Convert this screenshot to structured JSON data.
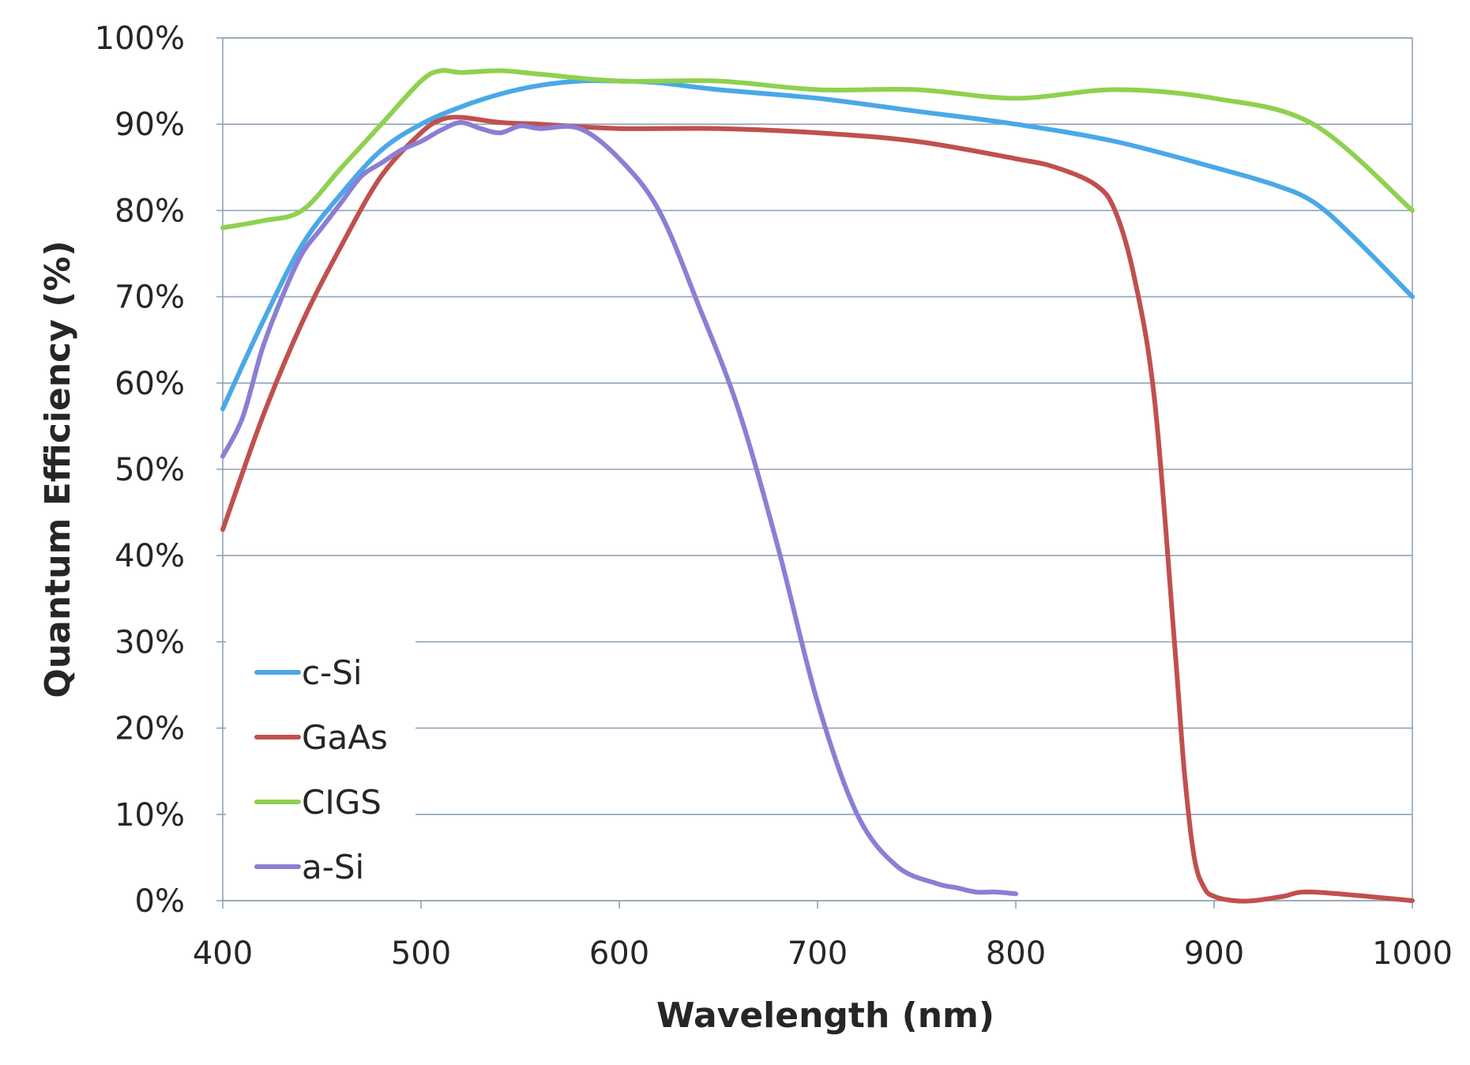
{
  "chart_data": {
    "type": "line",
    "title": "",
    "xlabel": "Wavelength (nm)",
    "ylabel": "Quantum Efficiency (%)",
    "xlim": [
      400,
      1000
    ],
    "ylim": [
      0,
      100
    ],
    "xticks": [
      400,
      500,
      600,
      700,
      800,
      900,
      1000
    ],
    "xtick_labels": [
      "400",
      "500",
      "600",
      "700",
      "800",
      "900",
      "1000"
    ],
    "yticks": [
      0,
      10,
      20,
      30,
      40,
      50,
      60,
      70,
      80,
      90,
      100
    ],
    "ytick_labels": [
      "0%",
      "10%",
      "20%",
      "30%",
      "40%",
      "50%",
      "60%",
      "70%",
      "80%",
      "90%",
      "100%"
    ],
    "grid": "horizontal",
    "legend_position": "lower-left",
    "series": [
      {
        "name": "c-Si",
        "color": "#4aa8e8",
        "x": [
          400,
          420,
          440,
          460,
          480,
          500,
          520,
          540,
          560,
          580,
          600,
          620,
          650,
          700,
          750,
          800,
          850,
          900,
          930,
          950,
          970,
          1000
        ],
        "y": [
          57,
          67,
          76,
          82,
          87,
          90,
          92,
          93.5,
          94.5,
          95,
          95,
          94.8,
          94,
          93,
          91.5,
          90,
          88,
          85,
          83,
          81,
          77,
          70
        ]
      },
      {
        "name": "GaAs",
        "color": "#c0504d",
        "x": [
          400,
          420,
          440,
          460,
          480,
          500,
          510,
          520,
          540,
          560,
          600,
          650,
          700,
          750,
          800,
          820,
          840,
          850,
          860,
          870,
          880,
          885,
          890,
          895,
          900,
          910,
          920,
          935,
          950,
          1000
        ],
        "y": [
          43,
          56,
          67,
          76,
          84,
          89,
          90.5,
          90.8,
          90.2,
          90,
          89.5,
          89.5,
          89,
          88,
          86,
          85,
          83,
          80,
          72,
          58,
          30,
          15,
          5,
          1.5,
          0.5,
          0,
          0,
          0.5,
          1,
          0
        ]
      },
      {
        "name": "CIGS",
        "color": "#8fd14f",
        "x": [
          400,
          420,
          440,
          460,
          480,
          500,
          510,
          520,
          540,
          560,
          600,
          650,
          700,
          750,
          800,
          850,
          900,
          950,
          1000
        ],
        "y": [
          78,
          78.8,
          80,
          85,
          90,
          95,
          96.2,
          96,
          96.2,
          95.8,
          95,
          95,
          94,
          94,
          93,
          94,
          93,
          90,
          80
        ]
      },
      {
        "name": "a-Si",
        "color": "#8a7fd4",
        "x": [
          400,
          410,
          420,
          430,
          440,
          450,
          460,
          470,
          480,
          490,
          500,
          510,
          520,
          530,
          540,
          550,
          560,
          580,
          600,
          620,
          640,
          660,
          680,
          700,
          720,
          740,
          760,
          770,
          780,
          790,
          800
        ],
        "y": [
          51.5,
          56,
          64,
          70,
          75,
          78,
          81,
          84,
          85.5,
          87,
          88,
          89.3,
          90.2,
          89.5,
          89,
          89.8,
          89.5,
          89.5,
          86,
          80,
          69,
          57,
          41,
          23,
          10,
          4,
          2,
          1.5,
          1,
          1,
          0.8
        ]
      }
    ]
  }
}
